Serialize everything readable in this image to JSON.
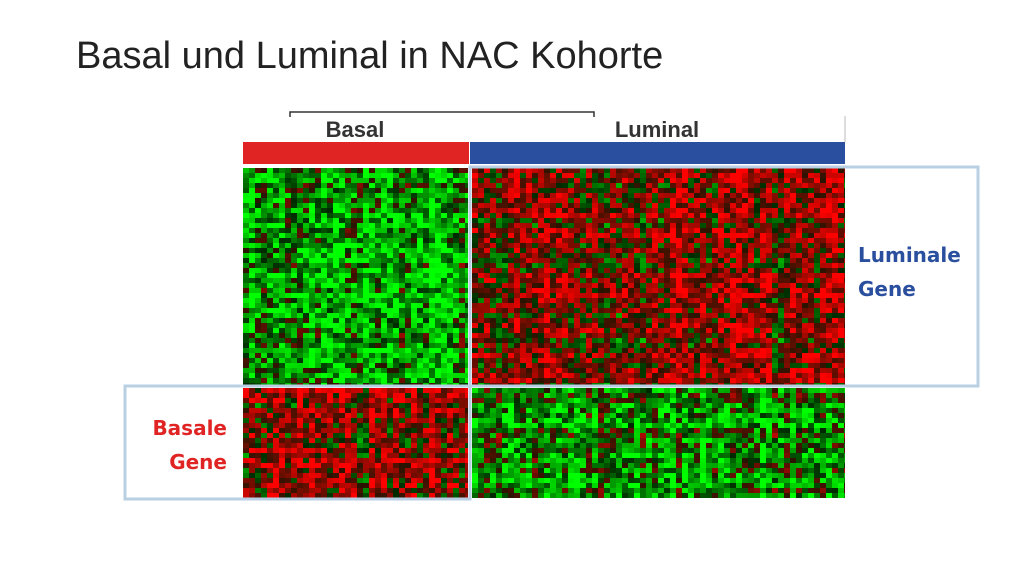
{
  "slide": {
    "title": "Basal und Luminal in NAC Kohorte",
    "column_groups": [
      "Basal",
      "Luminal"
    ],
    "row_groups": [
      [
        "Luminale",
        "Gene"
      ],
      [
        "Basale",
        "Gene"
      ]
    ]
  }
}
